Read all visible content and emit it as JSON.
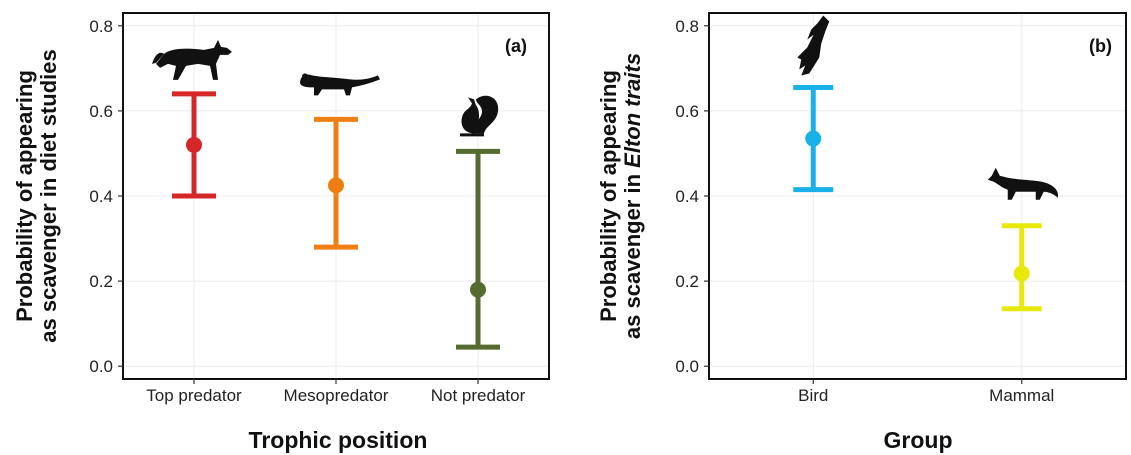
{
  "chart_data": [
    {
      "type": "errorbar",
      "panel_label": "(a)",
      "categories": [
        "Top predator",
        "Mesopredator",
        "Not predator"
      ],
      "points": [
        {
          "category": "Top predator",
          "estimate": 0.52,
          "lower": 0.4,
          "upper": 0.64,
          "color": "#d62728",
          "icon": "wolf-silhouette-icon"
        },
        {
          "category": "Mesopredator",
          "estimate": 0.425,
          "lower": 0.28,
          "upper": 0.58,
          "color": "#f07f13",
          "icon": "mustelid-silhouette-icon"
        },
        {
          "category": "Not predator",
          "estimate": 0.18,
          "lower": 0.045,
          "upper": 0.505,
          "color": "#556b2f",
          "icon": "squirrel-silhouette-icon"
        }
      ],
      "xlabel": "Trophic position",
      "ylabel_lines": [
        [
          {
            "text": "Probability of appearing",
            "italic": false
          }
        ],
        [
          {
            "text": "as scavenger in diet studies",
            "italic": false
          }
        ]
      ],
      "ylim": [
        -0.03,
        0.83
      ],
      "yticks": [
        "0.0",
        "0.2",
        "0.4",
        "0.6",
        "0.8"
      ],
      "ytick_values": [
        0.0,
        0.2,
        0.4,
        0.6,
        0.8
      ],
      "grid": true
    },
    {
      "type": "errorbar",
      "panel_label": "(b)",
      "categories": [
        "Bird",
        "Mammal"
      ],
      "points": [
        {
          "category": "Bird",
          "estimate": 0.535,
          "lower": 0.415,
          "upper": 0.655,
          "color": "#1ab0e8",
          "icon": "eagle-silhouette-icon"
        },
        {
          "category": "Mammal",
          "estimate": 0.218,
          "lower": 0.135,
          "upper": 0.33,
          "color": "#e8e80c",
          "icon": "fox-silhouette-icon"
        }
      ],
      "xlabel": "Group",
      "ylabel_lines": [
        [
          {
            "text": "Probability of appearing",
            "italic": false
          }
        ],
        [
          {
            "text": "as scavenger in ",
            "italic": false
          },
          {
            "text": "Elton traits",
            "italic": true
          }
        ]
      ],
      "ylim": [
        -0.03,
        0.83
      ],
      "yticks": [
        "0.0",
        "0.2",
        "0.4",
        "0.6",
        "0.8"
      ],
      "ytick_values": [
        0.0,
        0.2,
        0.4,
        0.6,
        0.8
      ],
      "grid": true
    }
  ]
}
